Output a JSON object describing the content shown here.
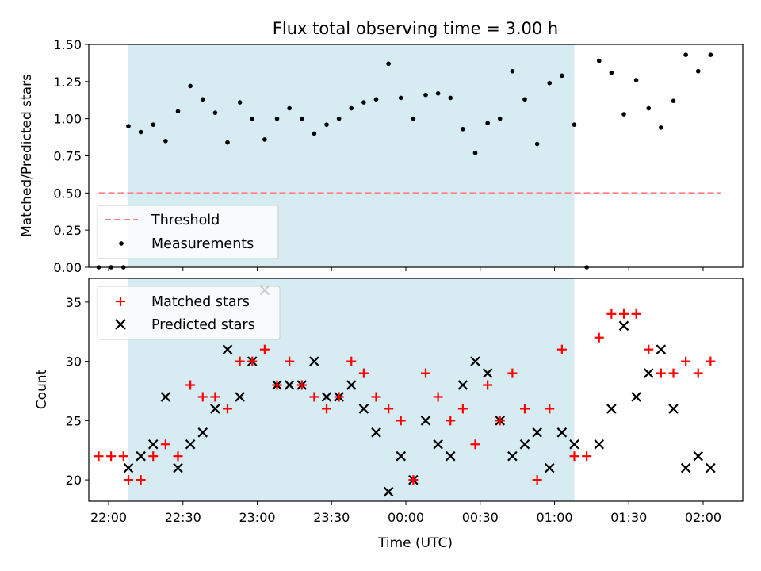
{
  "chart_data": {
    "title": "Flux total observing time = 3.00 h",
    "xlabel": "Time (UTC)",
    "x_ticks": [
      "22:00",
      "22:30",
      "23:00",
      "23:30",
      "00:00",
      "00:30",
      "01:00",
      "01:30",
      "02:00"
    ],
    "x_range": [
      "21:52",
      "02:16"
    ],
    "shaded_interval": [
      "22:08",
      "01:08"
    ],
    "colors": {
      "shade": "#add8e6",
      "threshold": "#ff7f7f",
      "measurements": "#000000",
      "matched": "#ff0000",
      "predicted": "#000000"
    },
    "panels": [
      {
        "type": "scatter",
        "ylabel": "Matched/Predicted stars",
        "ylim": [
          0,
          1.5
        ],
        "y_ticks": [
          "0.00",
          "0.25",
          "0.50",
          "0.75",
          "1.00",
          "1.25",
          "1.50"
        ],
        "grid": false,
        "legend_position": "lower-left",
        "threshold": {
          "name": "Threshold",
          "value": 0.5,
          "x_start": "21:56",
          "x_end": "02:07"
        },
        "series": [
          {
            "name": "Measurements",
            "x": [
              "21:56",
              "22:01",
              "22:06",
              "22:08",
              "22:13",
              "22:18",
              "22:23",
              "22:28",
              "22:33",
              "22:38",
              "22:43",
              "22:48",
              "22:53",
              "22:58",
              "23:03",
              "23:08",
              "23:13",
              "23:18",
              "23:23",
              "23:28",
              "23:33",
              "23:38",
              "23:43",
              "23:48",
              "23:53",
              "23:58",
              "00:03",
              "00:08",
              "00:13",
              "00:18",
              "00:23",
              "00:28",
              "00:33",
              "00:38",
              "00:43",
              "00:48",
              "00:53",
              "00:58",
              "01:03",
              "01:08",
              "01:13",
              "01:18",
              "01:23",
              "01:28",
              "01:33",
              "01:38",
              "01:43",
              "01:48",
              "01:53",
              "01:58",
              "02:03"
            ],
            "y": [
              0.0,
              0.0,
              0.0,
              0.95,
              0.91,
              0.96,
              0.85,
              1.05,
              1.22,
              1.13,
              1.04,
              0.84,
              1.11,
              1.0,
              0.86,
              1.0,
              1.07,
              1.0,
              0.9,
              0.96,
              1.0,
              1.07,
              1.11,
              1.13,
              1.37,
              1.14,
              1.0,
              1.16,
              1.17,
              1.14,
              0.93,
              0.77,
              0.97,
              1.0,
              1.32,
              1.13,
              0.83,
              1.24,
              1.29,
              0.96,
              0.0,
              1.39,
              1.31,
              1.03,
              1.26,
              1.07,
              0.94,
              1.12,
              1.43,
              1.32,
              1.43
            ]
          }
        ]
      },
      {
        "type": "scatter",
        "ylabel": "Count",
        "ylim": [
          18.2,
          37.0
        ],
        "y_ticks": [
          "20",
          "25",
          "30",
          "35"
        ],
        "grid": false,
        "legend_position": "upper-left",
        "series": [
          {
            "name": "Matched stars",
            "marker": "+",
            "x": [
              "21:56",
              "22:01",
              "22:06",
              "22:08",
              "22:13",
              "22:18",
              "22:23",
              "22:28",
              "22:33",
              "22:38",
              "22:43",
              "22:48",
              "22:53",
              "22:58",
              "23:03",
              "23:08",
              "23:13",
              "23:18",
              "23:23",
              "23:28",
              "23:33",
              "23:38",
              "23:43",
              "23:48",
              "23:53",
              "23:58",
              "00:03",
              "00:08",
              "00:13",
              "00:18",
              "00:23",
              "00:28",
              "00:33",
              "00:38",
              "00:43",
              "00:48",
              "00:53",
              "00:58",
              "01:03",
              "01:08",
              "01:13",
              "01:18",
              "01:23",
              "01:28",
              "01:33",
              "01:38",
              "01:43",
              "01:48",
              "01:53",
              "01:58",
              "02:03"
            ],
            "y": [
              22,
              22,
              22,
              20,
              20,
              22,
              23,
              22,
              28,
              27,
              27,
              26,
              30,
              30,
              31,
              28,
              30,
              28,
              27,
              26,
              27,
              30,
              29,
              27,
              26,
              25,
              20,
              29,
              27,
              25,
              26,
              23,
              28,
              25,
              29,
              26,
              20,
              26,
              31,
              22,
              22,
              32,
              34,
              34,
              34,
              31,
              29,
              29,
              30,
              29,
              30
            ]
          },
          {
            "name": "Predicted stars",
            "marker": "x",
            "x": [
              "22:08",
              "22:13",
              "22:18",
              "22:23",
              "22:28",
              "22:33",
              "22:38",
              "22:43",
              "22:48",
              "22:53",
              "22:58",
              "23:03",
              "23:08",
              "23:13",
              "23:18",
              "23:23",
              "23:28",
              "23:33",
              "23:38",
              "23:43",
              "23:48",
              "23:53",
              "23:58",
              "00:03",
              "00:08",
              "00:13",
              "00:18",
              "00:23",
              "00:28",
              "00:33",
              "00:38",
              "00:43",
              "00:48",
              "00:53",
              "00:58",
              "01:03",
              "01:08",
              "01:18",
              "01:23",
              "01:28",
              "01:33",
              "01:38",
              "01:43",
              "01:48",
              "01:53",
              "01:58",
              "02:03"
            ],
            "y": [
              21,
              22,
              23,
              27,
              21,
              23,
              24,
              26,
              31,
              27,
              30,
              36,
              28,
              28,
              28,
              30,
              27,
              27,
              28,
              26,
              24,
              19,
              22,
              20,
              25,
              23,
              22,
              28,
              30,
              29,
              25,
              22,
              23,
              24,
              21,
              24,
              23,
              23,
              26,
              33,
              27,
              29,
              31,
              26,
              21,
              22,
              21
            ]
          }
        ]
      }
    ]
  }
}
